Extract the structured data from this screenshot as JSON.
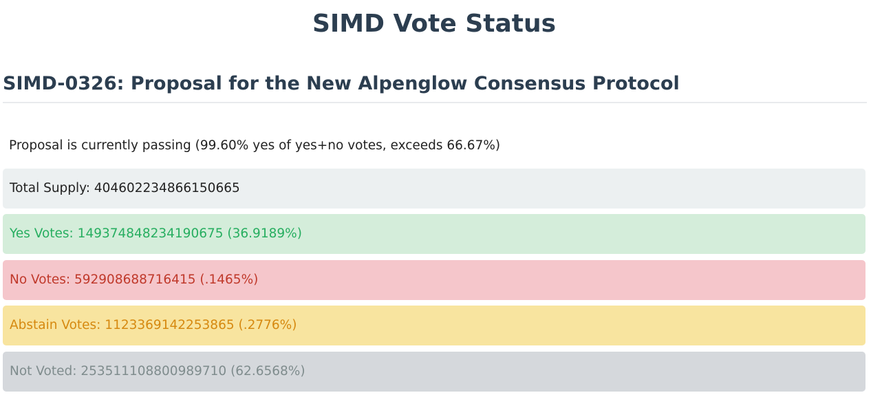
{
  "page": {
    "title": "SIMD Vote Status"
  },
  "proposal": {
    "title": "SIMD-0326: Proposal for the New Alpenglow Consensus Protocol",
    "status": "Proposal is currently passing (99.60% yes of yes+no votes, exceeds 66.67%)"
  },
  "stats": {
    "total_supply": "Total Supply: 404602234866150665",
    "yes_votes": "Yes Votes: 149374848234190675 (36.9189%)",
    "no_votes": "No Votes: 592908688716415 (.1465%)",
    "abstain_votes": "Abstain Votes: 1123369142253865 (.2776%)",
    "not_voted": "Not Voted: 253511108800989710 (62.6568%)"
  },
  "colors": {
    "heading": "#2c3e50",
    "total_bg": "#ecf0f1",
    "yes_bg": "#d4edda",
    "yes_text": "#27ae60",
    "no_bg": "#f5c6cb",
    "no_text": "#c0392b",
    "abstain_bg": "#f8e49f",
    "abstain_text": "#d68910",
    "notvoted_bg": "#d5d8dc",
    "notvoted_text": "#7f8c8d"
  }
}
